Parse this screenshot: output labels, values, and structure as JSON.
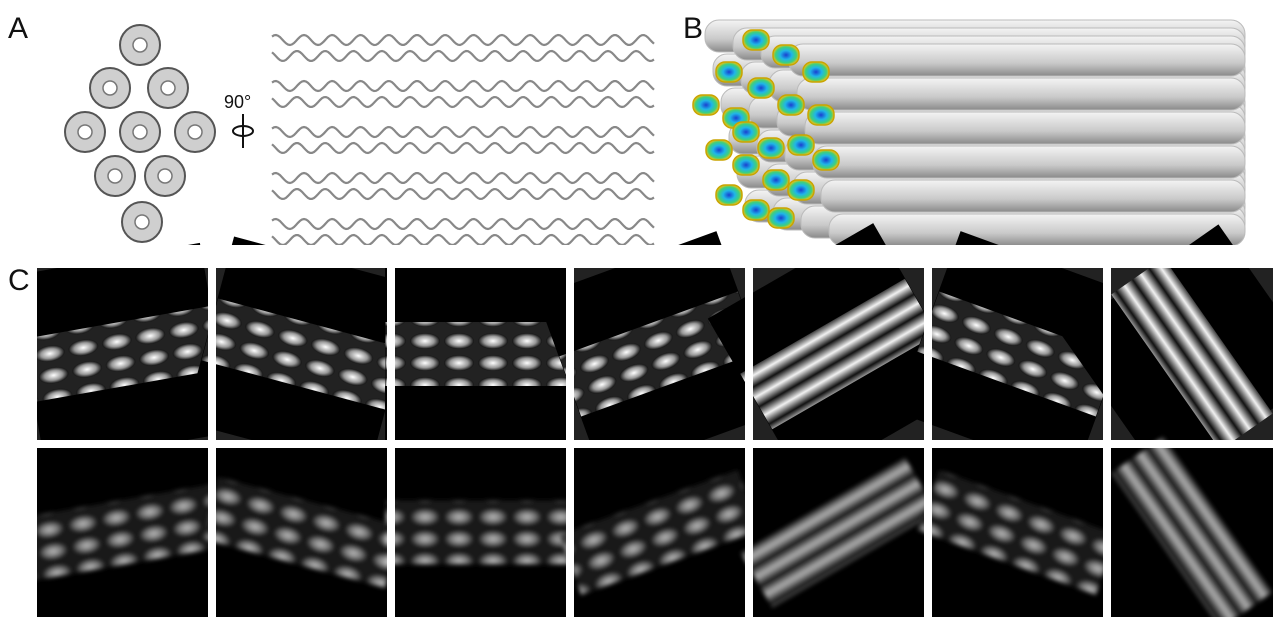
{
  "panels": [
    {
      "label": "A",
      "rotation_label": "90°"
    },
    {
      "label": "B"
    },
    {
      "label": "C"
    }
  ]
}
